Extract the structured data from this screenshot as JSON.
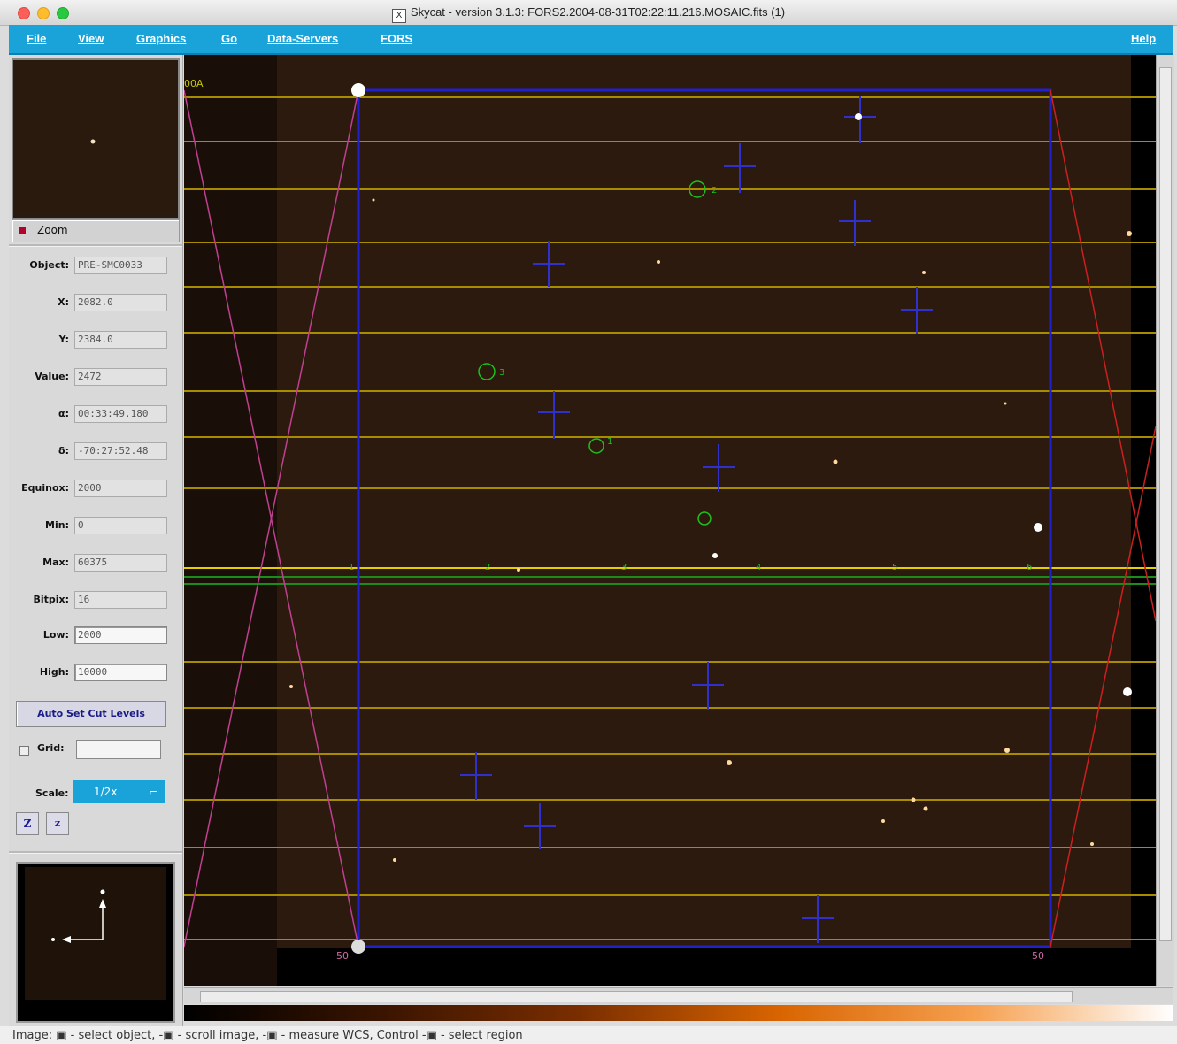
{
  "window": {
    "title": "Skycat - version 3.1.3: FORS2.2004-08-31T02:22:11.216.MOSAIC.fits (1)",
    "title_icon": "X"
  },
  "menu": {
    "file": "File",
    "view": "View",
    "graphics": "Graphics",
    "go": "Go",
    "data_servers": "Data-Servers",
    "fors": "FORS",
    "help": "Help"
  },
  "sidebar": {
    "zoom_label": "Zoom",
    "fields": [
      {
        "label": "Object:",
        "value": "PRE-SMC0033"
      },
      {
        "label": "X:",
        "value": "2082.0"
      },
      {
        "label": "Y:",
        "value": "2384.0"
      },
      {
        "label": "Value:",
        "value": "2472"
      },
      {
        "label": "α:",
        "value": "00:33:49.180"
      },
      {
        "label": "δ:",
        "value": "-70:27:52.48"
      },
      {
        "label": "Equinox:",
        "value": "2000"
      },
      {
        "label": "Min:",
        "value": "0"
      },
      {
        "label": "Max:",
        "value": "60375"
      },
      {
        "label": "Bitpix:",
        "value": "16"
      },
      {
        "label": "Low:",
        "value": "2000"
      },
      {
        "label": "High:",
        "value": "10000"
      }
    ],
    "autocut_label": "Auto Set Cut Levels",
    "grid_label": "Grid:",
    "scale_label": "Scale:",
    "scale_value": "1/2x",
    "zoom_in": "Z",
    "zoom_out": "z"
  },
  "image": {
    "corner_label_tl": "00A",
    "corner_label_bl": "50",
    "corner_label_br": "50",
    "slit_labels": [
      "1",
      "2",
      "3",
      "4",
      "5",
      "6"
    ],
    "target_labels": [
      "1",
      "2",
      "3"
    ]
  },
  "status": {
    "text": "Image:  ▣ - select object,  -▣ - scroll image,  -▣ - measure WCS, Control  -▣ - select region"
  }
}
